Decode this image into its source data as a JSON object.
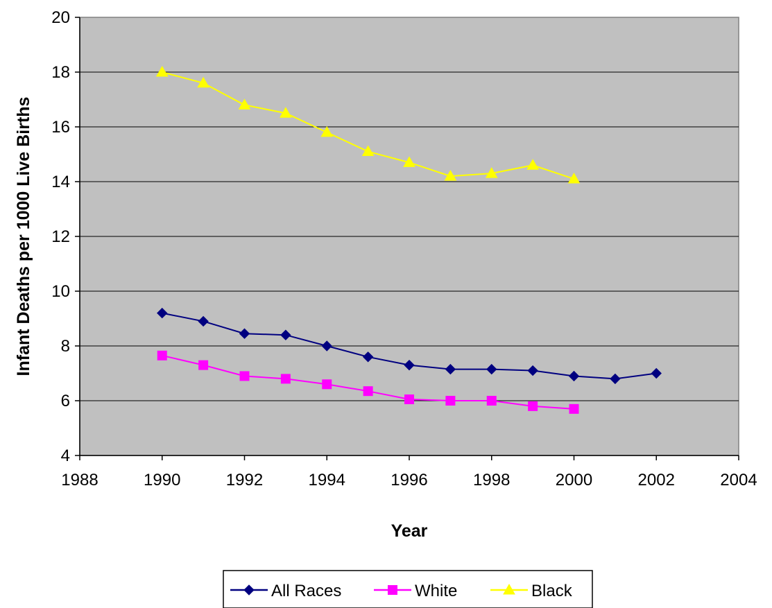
{
  "chart_data": {
    "type": "line",
    "title": "",
    "xlabel": "Year",
    "ylabel": "Infant Deaths per 1000 Live Births",
    "xlim": [
      1988,
      2004
    ],
    "ylim": [
      4,
      20
    ],
    "x_ticks": [
      1988,
      1990,
      1992,
      1994,
      1996,
      1998,
      2000,
      2002,
      2004
    ],
    "y_ticks": [
      4,
      6,
      8,
      10,
      12,
      14,
      16,
      18,
      20
    ],
    "grid": "horizontal",
    "plot_background": "#c0c0c0",
    "legend_position": "bottom",
    "series": [
      {
        "name": "All Races",
        "color": "#000080",
        "marker": "diamond-icon",
        "x": [
          1990,
          1991,
          1992,
          1993,
          1994,
          1995,
          1996,
          1997,
          1998,
          1999,
          2000,
          2001,
          2002
        ],
        "y": [
          9.2,
          8.9,
          8.45,
          8.4,
          8.0,
          7.6,
          7.3,
          7.15,
          7.15,
          7.1,
          6.9,
          6.8,
          7.0
        ]
      },
      {
        "name": "White",
        "color": "#ff00ff",
        "marker": "square-icon",
        "x": [
          1990,
          1991,
          1992,
          1993,
          1994,
          1995,
          1996,
          1997,
          1998,
          1999,
          2000
        ],
        "y": [
          7.65,
          7.3,
          6.9,
          6.8,
          6.6,
          6.35,
          6.05,
          6.0,
          6.0,
          5.8,
          5.7
        ]
      },
      {
        "name": "Black",
        "color": "#ffff00",
        "marker": "triangle-icon",
        "x": [
          1990,
          1991,
          1992,
          1993,
          1994,
          1995,
          1996,
          1997,
          1998,
          1999,
          2000
        ],
        "y": [
          18.0,
          17.6,
          16.8,
          16.5,
          15.8,
          15.1,
          14.7,
          14.2,
          14.3,
          14.6,
          14.1
        ]
      }
    ]
  }
}
